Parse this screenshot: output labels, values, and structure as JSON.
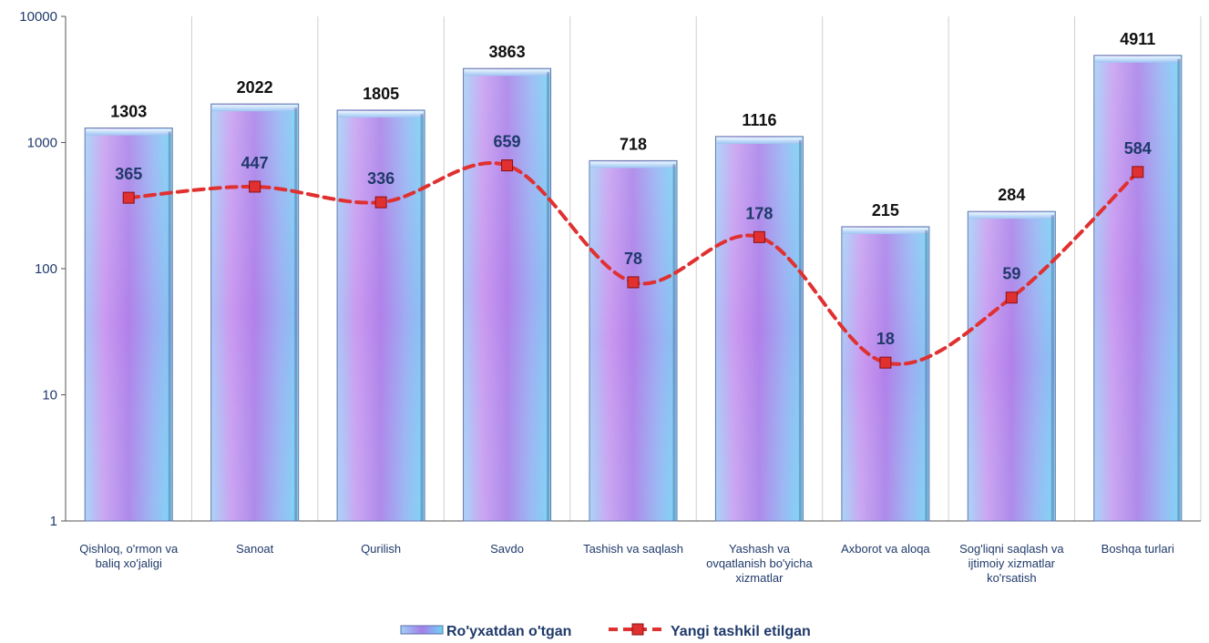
{
  "chart_data": {
    "type": "bar",
    "y_scale": "log",
    "ylim": [
      1,
      10000
    ],
    "y_ticks": [
      "1",
      "10",
      "100",
      "1000",
      "10000"
    ],
    "grid": "vertical",
    "legend_position": "bottom",
    "categories": [
      [
        "Qishloq, o'rmon va",
        "baliq xo'jaligi"
      ],
      [
        "Sanoat"
      ],
      [
        "Qurilish"
      ],
      [
        "Savdo"
      ],
      [
        "Tashish va saqlash"
      ],
      [
        "Yashash va",
        "ovqatlanish bo'yicha",
        "xizmatlar"
      ],
      [
        "Axborot va aloqa"
      ],
      [
        "Sog'liqni saqlash va",
        "ijtimoiy xizmatlar",
        "ko'rsatish"
      ],
      [
        "Boshqa turlari"
      ]
    ],
    "series": [
      {
        "name": "Ro'yxatdan o'tgan",
        "type": "bar",
        "values": [
          1303,
          2022,
          1805,
          3863,
          718,
          1116,
          215,
          284,
          4911
        ]
      },
      {
        "name": "Yangi tashkil etilgan",
        "type": "line",
        "style": "dashed-smooth",
        "color": "#e03030",
        "values": [
          365,
          447,
          336,
          659,
          78,
          178,
          18,
          59,
          584
        ]
      }
    ]
  }
}
